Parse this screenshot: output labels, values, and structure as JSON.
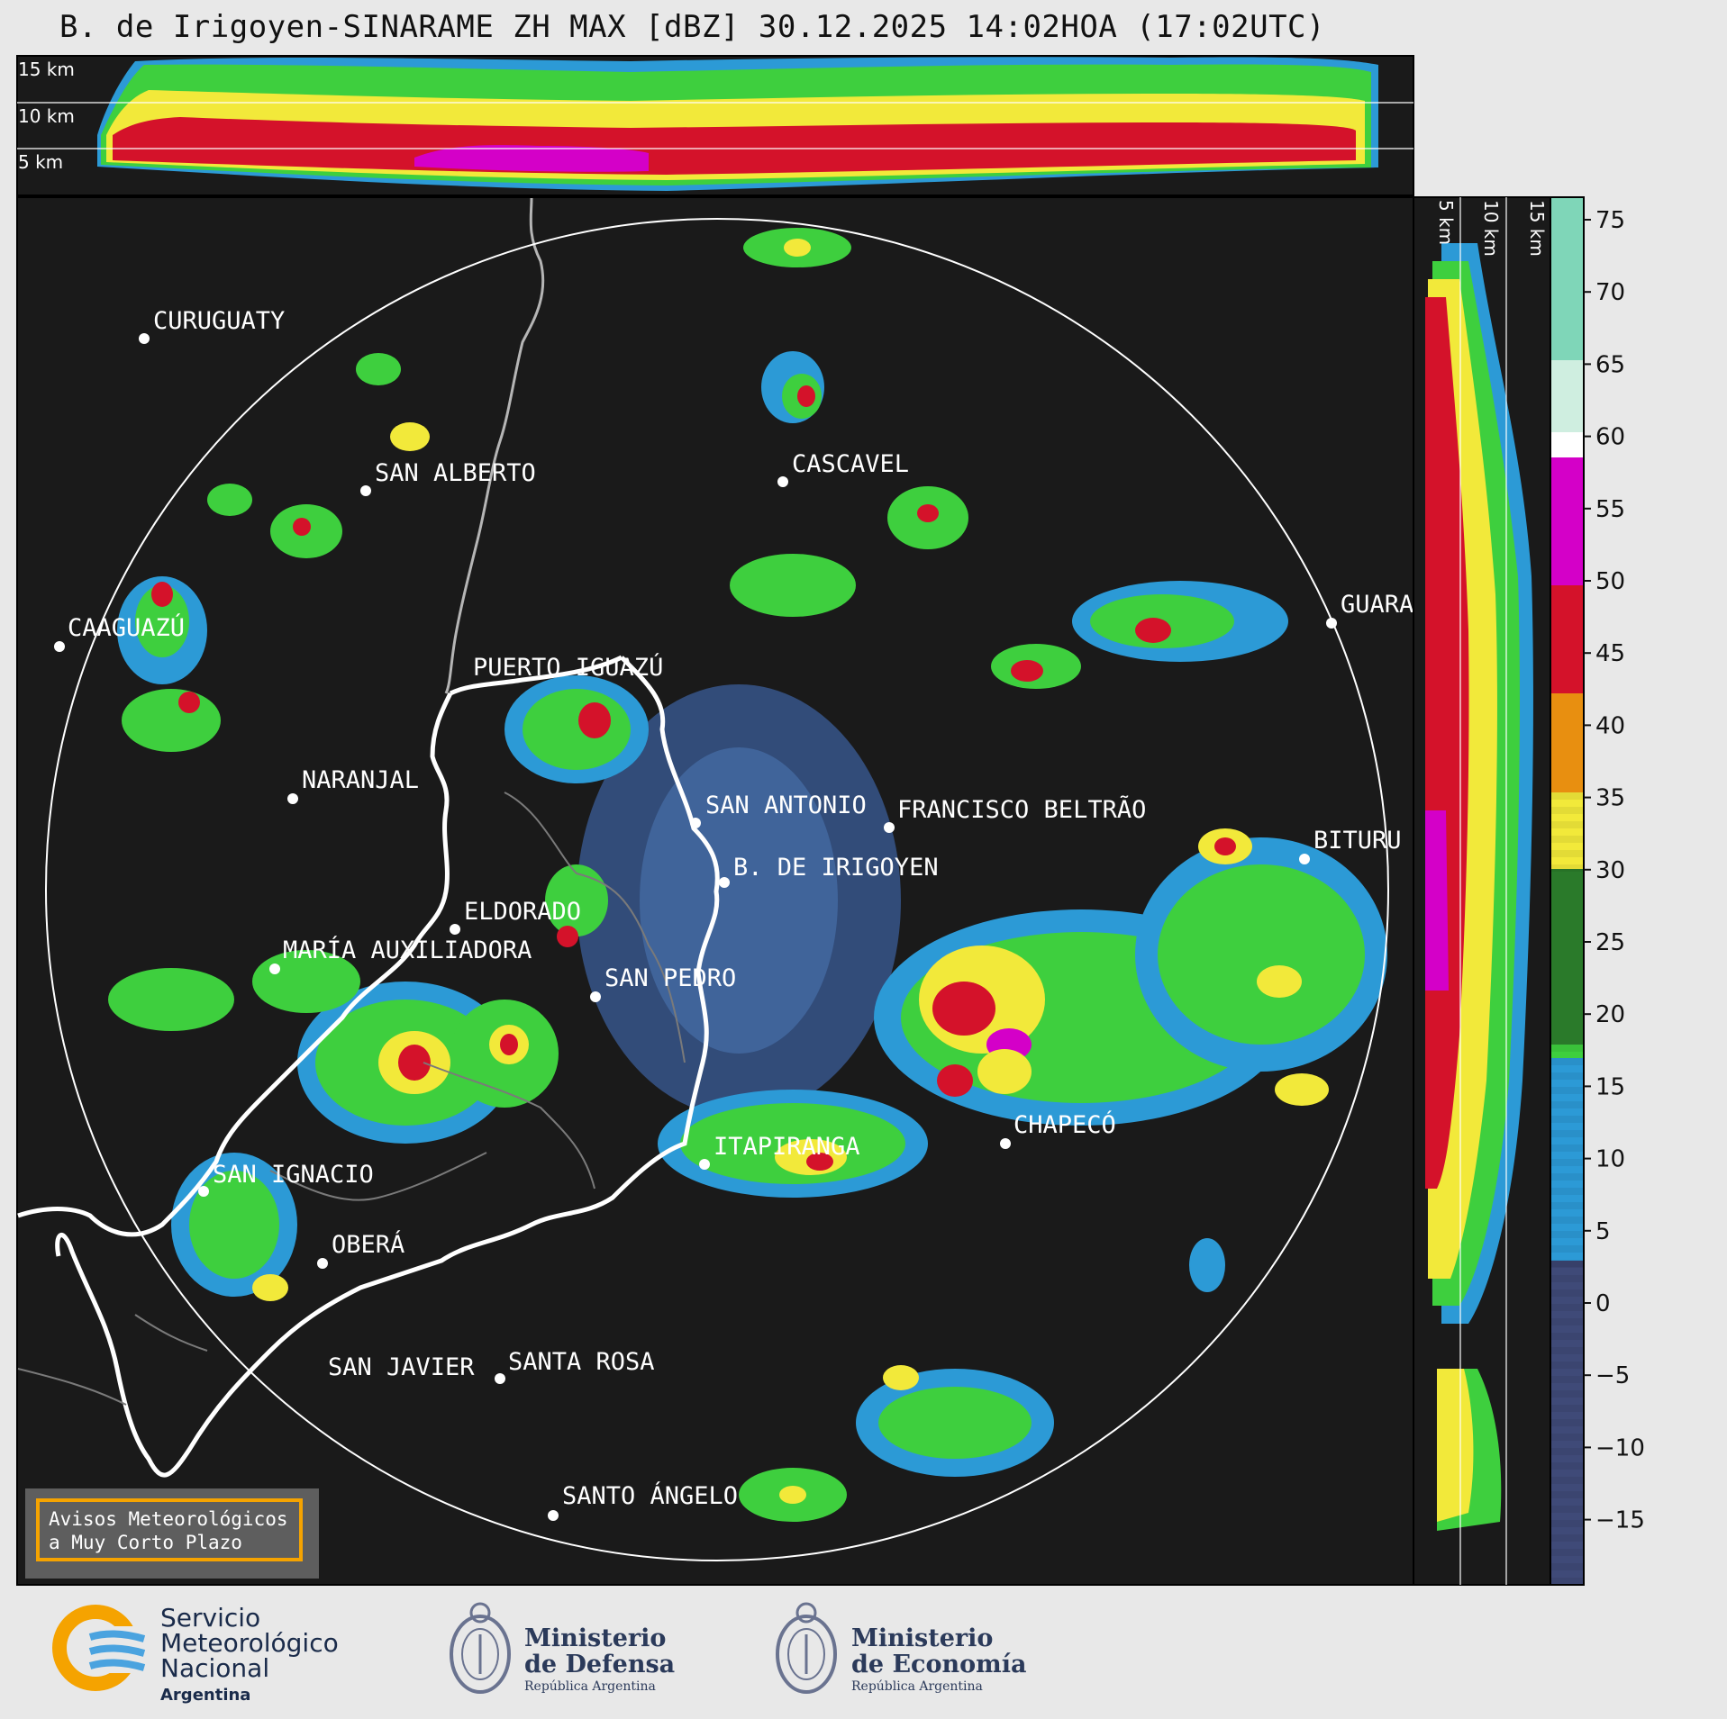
{
  "title": "B. de Irigoyen-SINARAME ZH MAX [dBZ] 30.12.2025 14:02HOA (17:02UTC)",
  "top_panel_labels": [
    "15 km",
    "10 km",
    "5 km"
  ],
  "side_panel_labels": [
    "5 km",
    "10 km",
    "15 km"
  ],
  "colorbar": {
    "ticks": [
      "75",
      "70",
      "65",
      "60",
      "55",
      "50",
      "45",
      "40",
      "35",
      "30",
      "25",
      "20",
      "15",
      "10",
      "5",
      "0",
      "−5",
      "−10",
      "−15"
    ],
    "colors": {
      "neg": "#3f4a78",
      "blue": "#2c9ad6",
      "green": "#3ecf3e",
      "darkgreen": "#2a7a2a",
      "yellow": "#f2e93a",
      "orange": "#e88f10",
      "red": "#d4122a",
      "magenta": "#d400c8",
      "white": "#ffffff",
      "teal": "#7fd6b8"
    }
  },
  "cities": [
    {
      "name": "CURUGUATY"
    },
    {
      "name": "SAN ALBERTO"
    },
    {
      "name": "CASCAVEL"
    },
    {
      "name": "CAAGUAZÚ"
    },
    {
      "name": "GUARA"
    },
    {
      "name": "PUERTO IGUAZÚ"
    },
    {
      "name": "NARANJAL"
    },
    {
      "name": "SAN ANTONIO"
    },
    {
      "name": "FRANCISCO BELTRÃO"
    },
    {
      "name": "BITURU"
    },
    {
      "name": "B. DE IRIGOYEN"
    },
    {
      "name": "ELDORADO"
    },
    {
      "name": "MARÍA AUXILIADORA"
    },
    {
      "name": "SAN PEDRO"
    },
    {
      "name": "CHAPECÓ"
    },
    {
      "name": "ITAPIRANGA"
    },
    {
      "name": "SAN IGNACIO"
    },
    {
      "name": "OBERÁ"
    },
    {
      "name": "SAN JAVIER"
    },
    {
      "name": "SANTA ROSA"
    },
    {
      "name": "SANTO ÁNGELO"
    }
  ],
  "aviso": {
    "line1": "Avisos Meteorológicos",
    "line2": "a Muy Corto Plazo"
  },
  "logos": {
    "smn": {
      "line1": "Servicio",
      "line2": "Meteorológico",
      "line3": "Nacional",
      "line4": "Argentina"
    },
    "defensa": {
      "line1": "Ministerio",
      "line2": "de Defensa",
      "line3": "República Argentina"
    },
    "economia": {
      "line1": "Ministerio",
      "line2": "de Economía",
      "line3": "República Argentina"
    }
  }
}
